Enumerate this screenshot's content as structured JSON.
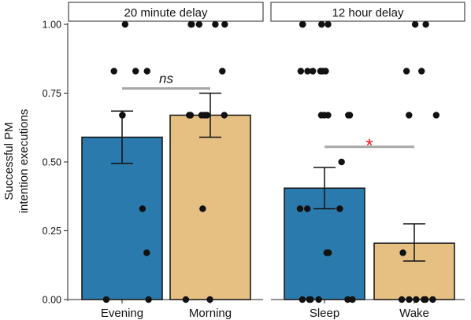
{
  "chart_data": {
    "type": "bar",
    "ylabel_lines": [
      "Successful PM",
      "intention executions"
    ],
    "xlabel": "",
    "ylim": [
      0,
      1
    ],
    "yticks": [
      "0.00",
      "0.25",
      "0.50",
      "0.75",
      "1.00"
    ],
    "colors": {
      "evening_sleep": "#2a7aad",
      "morning_wake": "#e6c083",
      "bracket": "#a6a6a6",
      "star": "#e41a1c"
    },
    "panels": [
      {
        "title": "20 minute delay",
        "categories": [
          "Evening",
          "Morning"
        ],
        "values": [
          0.59,
          0.67
        ],
        "errors": [
          [
            0.495,
            0.685
          ],
          [
            0.59,
            0.75
          ]
        ],
        "points": [
          [
            1.0,
            0.83,
            0.83,
            0.83,
            0.67,
            0.67,
            0.33,
            0.17,
            0.0,
            0.0
          ],
          [
            1.0,
            1.0,
            1.0,
            1.0,
            1.0,
            0.83,
            0.67,
            0.67,
            0.67,
            0.67,
            0.67,
            0.67,
            0.33,
            0.0,
            0.0
          ]
        ],
        "annotation": "ns"
      },
      {
        "title": "12 hour delay",
        "categories": [
          "Sleep",
          "Wake"
        ],
        "values": [
          0.405,
          0.205
        ],
        "errors": [
          [
            0.33,
            0.48
          ],
          [
            0.14,
            0.275
          ]
        ],
        "points": [
          [
            1.0,
            1.0,
            1.0,
            1.0,
            0.83,
            0.83,
            0.83,
            0.83,
            0.83,
            0.83,
            0.67,
            0.67,
            0.67,
            0.67,
            0.67,
            0.5,
            0.33,
            0.33,
            0.33,
            0.17,
            0.17,
            0.0,
            0.0,
            0.0,
            0.0,
            0.0,
            0.0
          ],
          [
            1.0,
            1.0,
            0.83,
            0.83,
            0.67,
            0.67,
            0.17,
            0.0,
            0.0,
            0.0,
            0.0,
            0.0,
            0.0
          ]
        ],
        "annotation": "*"
      }
    ]
  }
}
